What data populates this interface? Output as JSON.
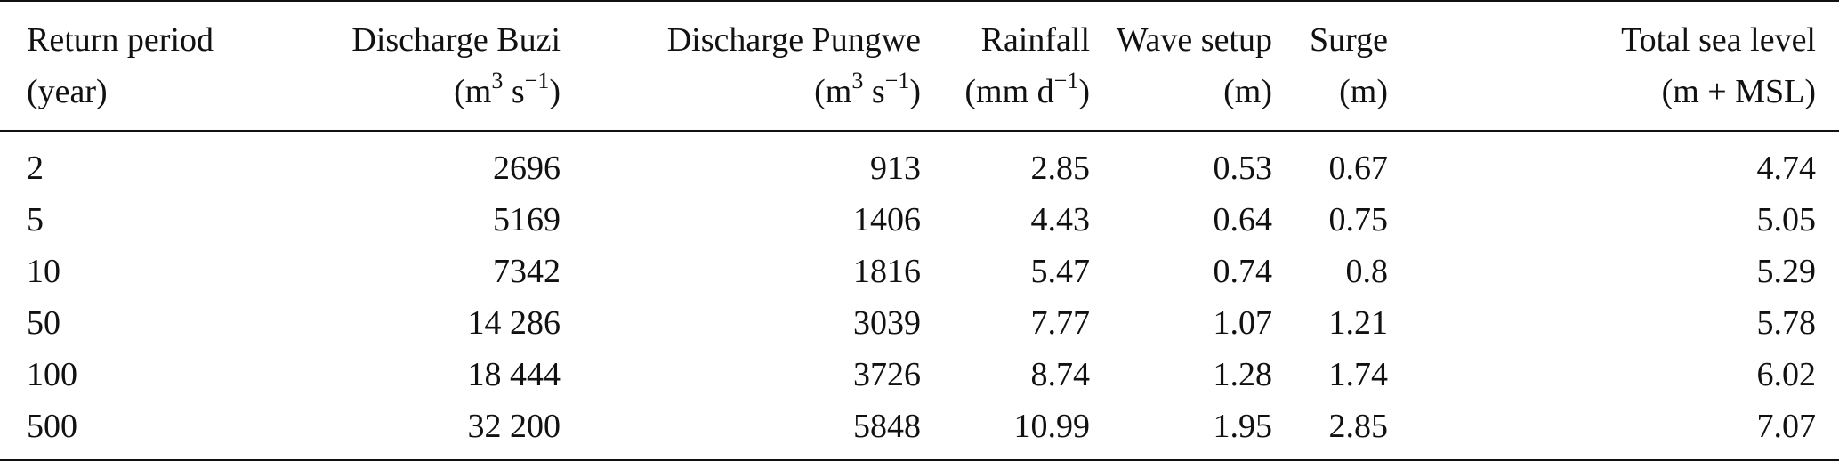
{
  "table": {
    "header_row1": [
      "Return period",
      "Discharge Buzi",
      "Discharge Pungwe",
      "Rainfall",
      "Wave setup",
      "Surge",
      "Total sea level"
    ],
    "header_units": {
      "return_period": "(year)",
      "buzi_pre": "(m",
      "buzi_sup1": "3",
      "buzi_mid": " s",
      "buzi_sup2": "−1",
      "buzi_post": ")",
      "pungwe_pre": "(m",
      "pungwe_sup1": "3",
      "pungwe_mid": " s",
      "pungwe_sup2": "−1",
      "pungwe_post": ")",
      "rain_pre": "(mm d",
      "rain_sup": "−1",
      "rain_post": ")",
      "wave": "(m)",
      "surge": "(m)",
      "total": "(m + MSL)"
    },
    "rows": [
      [
        "2",
        "2696",
        "913",
        "2.85",
        "0.53",
        "0.67",
        "4.74"
      ],
      [
        "5",
        "5169",
        "1406",
        "4.43",
        "0.64",
        "0.75",
        "5.05"
      ],
      [
        "10",
        "7342",
        "1816",
        "5.47",
        "0.74",
        "0.8",
        "5.29"
      ],
      [
        "50",
        "14 286",
        "3039",
        "7.77",
        "1.07",
        "1.21",
        "5.78"
      ],
      [
        "100",
        "18 444",
        "3726",
        "8.74",
        "1.28",
        "1.74",
        "6.02"
      ],
      [
        "500",
        "32 200",
        "5848",
        "10.99",
        "1.95",
        "2.85",
        "7.07"
      ]
    ]
  }
}
